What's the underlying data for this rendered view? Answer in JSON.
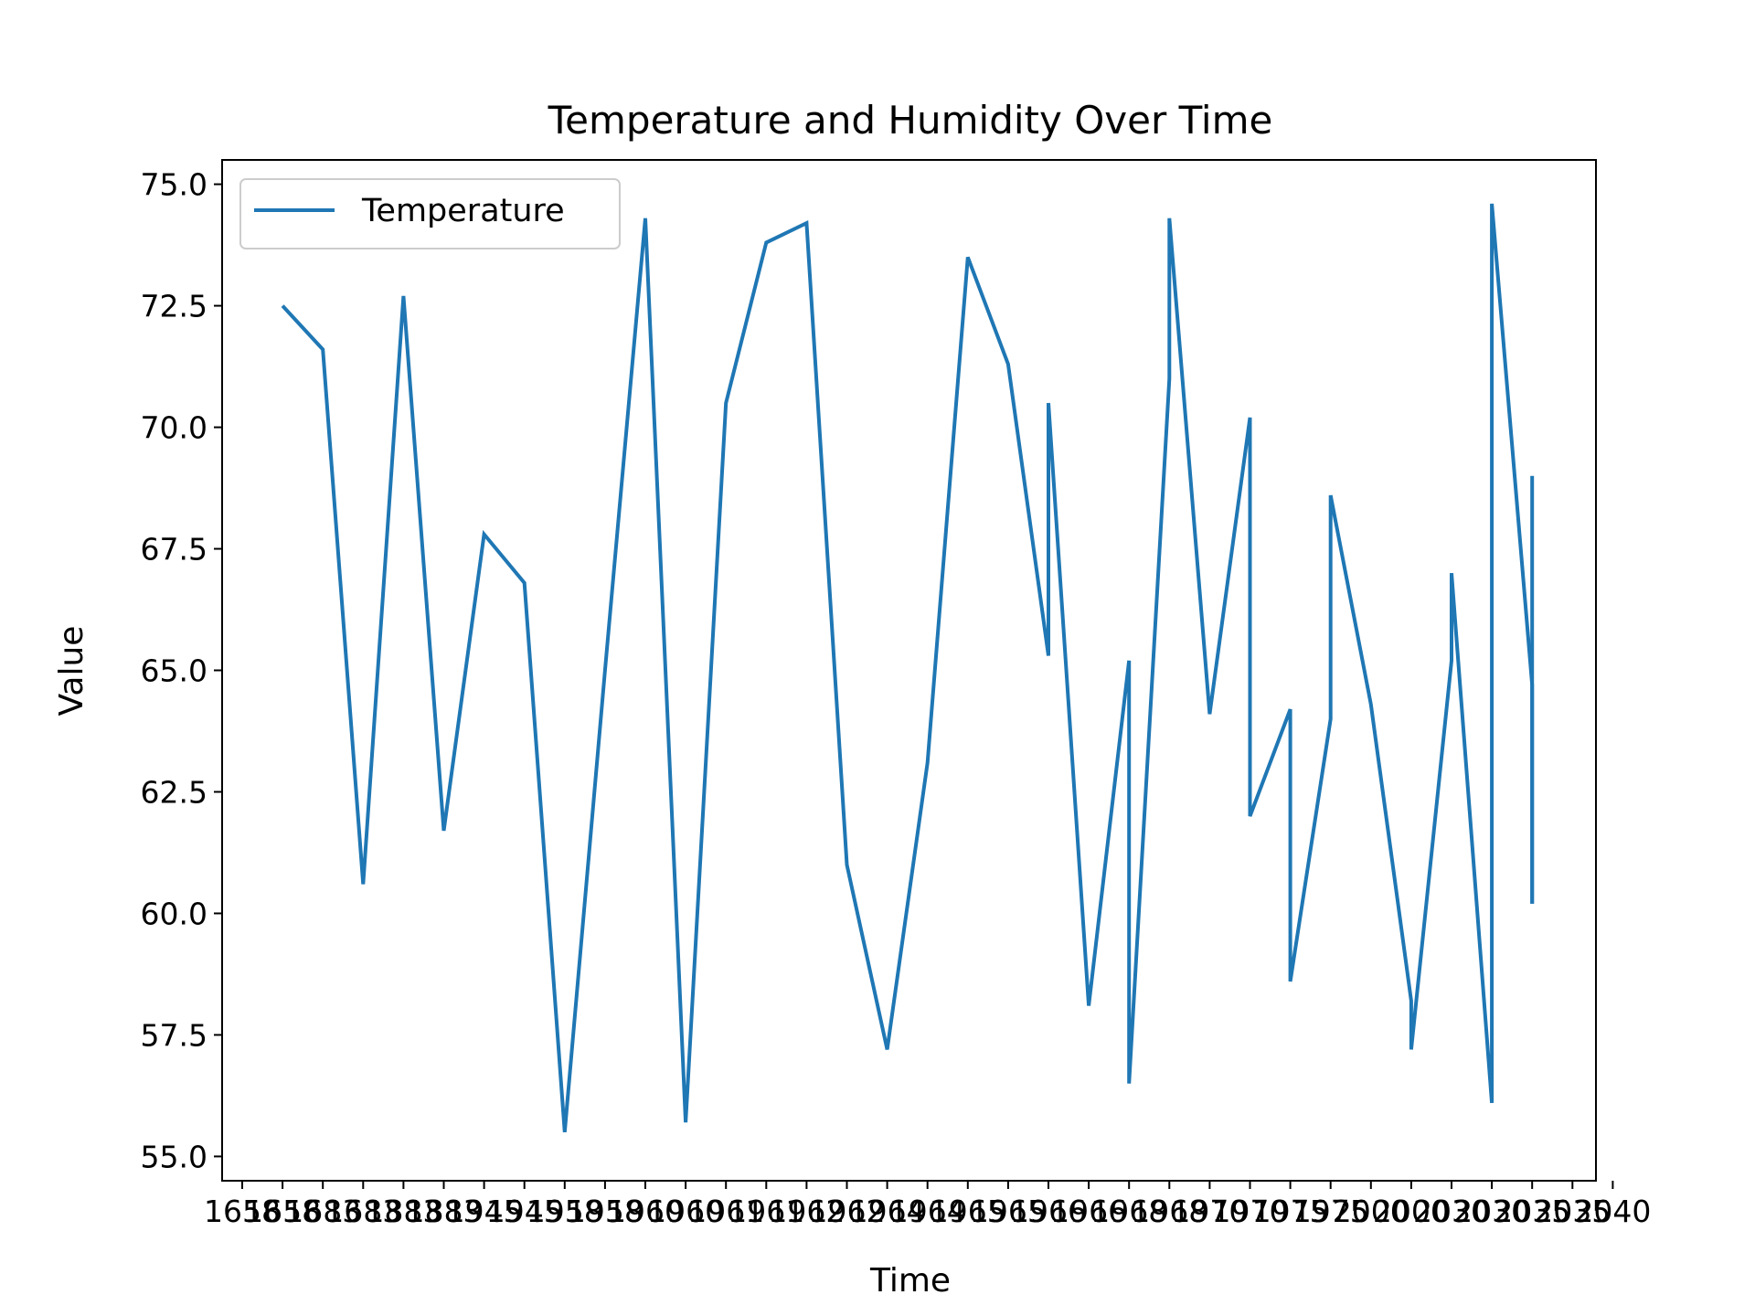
{
  "chart_data": {
    "type": "line",
    "title": "Temperature and Humidity Over Time",
    "xlabel": "Time",
    "ylabel": "Value",
    "ylim": [
      54.5,
      75.5
    ],
    "yticks": [
      55.0,
      57.5,
      60.0,
      62.5,
      65.0,
      67.5,
      70.0,
      72.5,
      75.0
    ],
    "ytick_labels": [
      "55.0",
      "57.5",
      "60.0",
      "62.5",
      "65.0",
      "67.5",
      "70.0",
      "72.5",
      "75.0"
    ],
    "xtick_labels": [
      "1658",
      "1658",
      "1683",
      "1683",
      "1883",
      "1883",
      "1945",
      "1945",
      "1958",
      "1958",
      "1960",
      "1960",
      "1961",
      "1961",
      "1962",
      "1962",
      "1964",
      "1964",
      "1965",
      "1965",
      "1966",
      "1966",
      "1968",
      "1968",
      "1970",
      "1970",
      "1975",
      "1975",
      "2000",
      "2000",
      "2030",
      "2030",
      "2035",
      "2035",
      "2040"
    ],
    "grid": false,
    "legend": {
      "position": "top-left"
    },
    "series": [
      {
        "name": "Temperature",
        "color": "#1f77b4",
        "x": [
          1,
          2,
          3,
          4,
          5,
          6,
          7,
          8,
          9,
          10,
          11,
          12,
          13,
          14,
          15,
          16,
          17,
          18,
          19,
          20,
          20,
          21,
          22,
          22,
          23,
          23,
          24,
          25,
          25,
          26,
          26,
          27,
          27,
          28,
          29,
          29,
          30,
          30,
          31,
          31,
          32,
          32
        ],
        "values": [
          72.5,
          71.6,
          60.6,
          72.7,
          61.7,
          67.8,
          66.8,
          55.5,
          65.0,
          74.3,
          55.7,
          70.5,
          73.8,
          74.2,
          61.0,
          57.2,
          63.1,
          73.5,
          71.3,
          65.3,
          70.5,
          58.1,
          65.2,
          56.5,
          71.0,
          74.3,
          64.1,
          70.2,
          62.0,
          64.2,
          58.6,
          64.0,
          68.6,
          64.3,
          58.2,
          57.2,
          65.2,
          67.0,
          56.1,
          74.6,
          64.7,
          60.2
        ]
      }
    ],
    "final_segment": {
      "x": 32,
      "values": [
        60.2,
        69.0
      ]
    },
    "axes_box": {
      "edge_color": "#000000"
    }
  }
}
